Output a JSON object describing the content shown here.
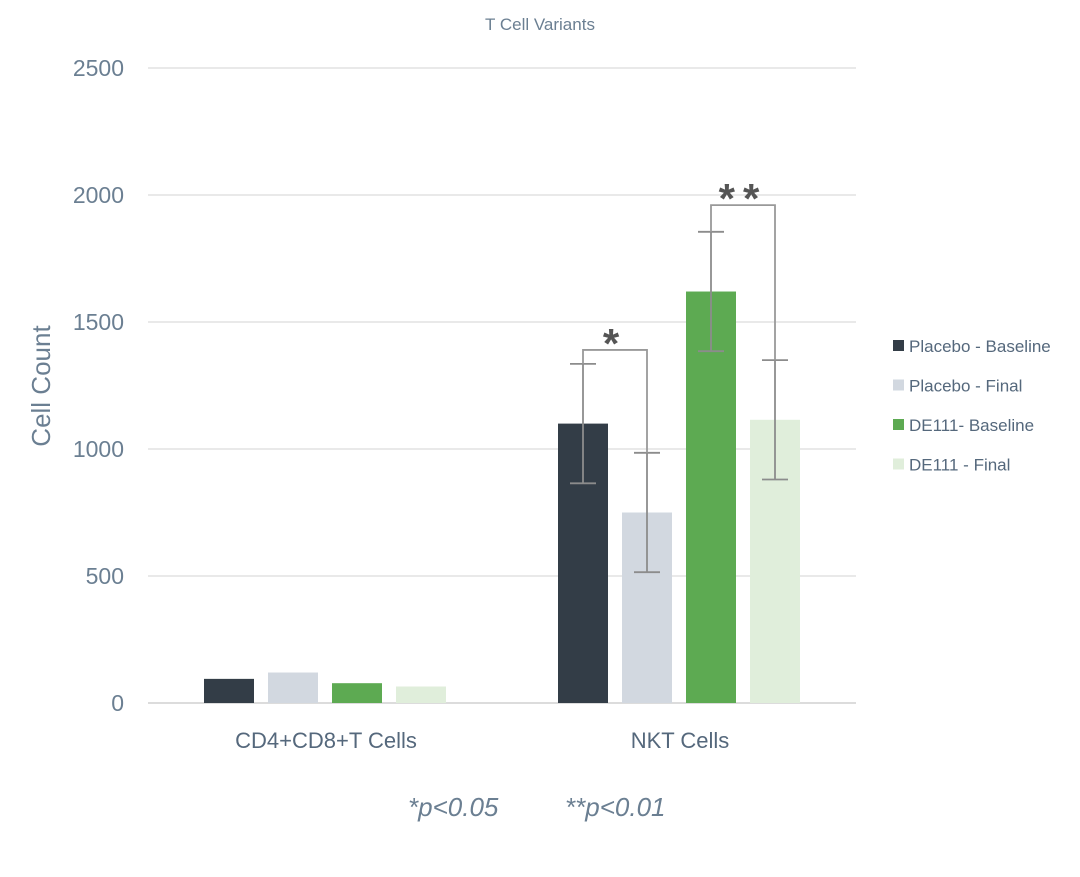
{
  "chart_data": {
    "type": "bar",
    "title": "T Cell Variants",
    "ylabel": "Cell Count",
    "xlabel": "",
    "ylim": [
      0,
      2500
    ],
    "yticks": [
      0,
      500,
      1000,
      1500,
      2000,
      2500
    ],
    "grid": true,
    "legend_position": "right",
    "categories": [
      "CD4+CD8+T Cells",
      "NKT Cells"
    ],
    "series": [
      {
        "name": "Placebo - Baseline",
        "color": "#333d47",
        "values": [
          95,
          1100
        ],
        "errors": [
          null,
          235
        ]
      },
      {
        "name": "Placebo - Final",
        "color": "#d2d8e0",
        "values": [
          120,
          750
        ],
        "errors": [
          null,
          235
        ]
      },
      {
        "name": "DE111- Baseline",
        "color": "#5daa52",
        "values": [
          78,
          1620
        ],
        "errors": [
          null,
          235
        ]
      },
      {
        "name": "DE111 - Final",
        "color": "#e0eedb",
        "values": [
          65,
          1115
        ],
        "errors": [
          null,
          235
        ]
      }
    ],
    "significance": [
      {
        "category": 1,
        "from_series": 0,
        "to_series": 1,
        "label": "*",
        "level": 1390
      },
      {
        "category": 1,
        "from_series": 2,
        "to_series": 3,
        "label": "**",
        "level": 1960
      }
    ],
    "footnote": [
      "*p<0.05",
      "**p<0.01"
    ]
  }
}
